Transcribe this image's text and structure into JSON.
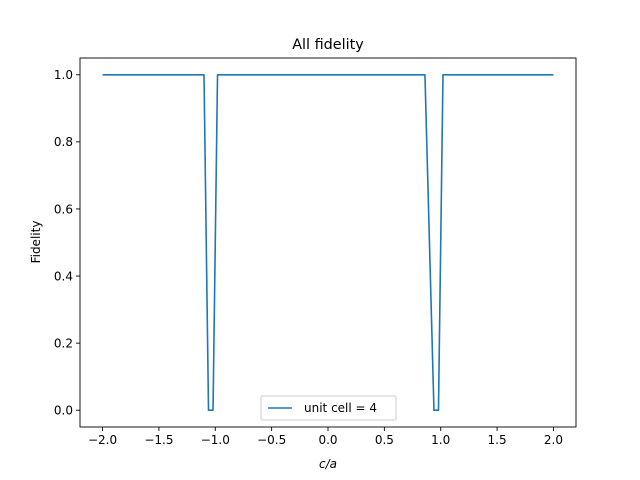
{
  "chart_data": {
    "type": "line",
    "title": "All fidelity",
    "xlabel": "c/a",
    "ylabel": "Fidelity",
    "xlim": [
      -2.2,
      2.2
    ],
    "ylim": [
      -0.05,
      1.05
    ],
    "xticks": [
      -2.0,
      -1.5,
      -1.0,
      -0.5,
      0.0,
      0.5,
      1.0,
      1.5,
      2.0
    ],
    "xtick_labels": [
      "−2.0",
      "−1.5",
      "−1.0",
      "−0.5",
      "0.0",
      "0.5",
      "1.0",
      "1.5",
      "2.0"
    ],
    "yticks": [
      0.0,
      0.2,
      0.4,
      0.6,
      0.8,
      1.0
    ],
    "ytick_labels": [
      "0.0",
      "0.2",
      "0.4",
      "0.6",
      "0.8",
      "1.0"
    ],
    "grid": false,
    "legend_position": "bottom-center",
    "series": [
      {
        "name": "unit cell = 4",
        "color": "#1f77b4",
        "x": [
          -2.0,
          -1.1,
          -1.06,
          -1.02,
          -0.98,
          0.86,
          0.94,
          0.98,
          1.02,
          2.0
        ],
        "y": [
          1.0,
          1.0,
          0.0,
          0.0,
          1.0,
          1.0,
          0.0,
          0.0,
          1.0,
          1.0
        ]
      }
    ]
  }
}
